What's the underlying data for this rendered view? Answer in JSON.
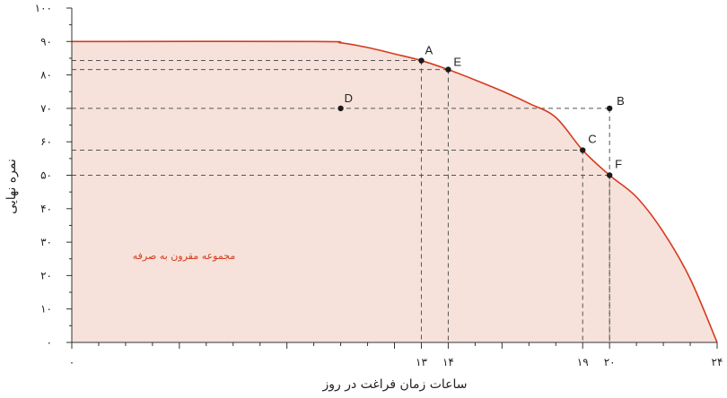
{
  "chart_data": {
    "type": "area",
    "xlabel": "ساعات زمان فراغت در روز",
    "ylabel": "نمره نهایی",
    "xlim": [
      0,
      24
    ],
    "ylim": [
      0,
      100
    ],
    "x_ticks": [
      {
        "value": 0,
        "label": "۰"
      },
      {
        "value": 13,
        "label": "۱۳"
      },
      {
        "value": 14,
        "label": "۱۴"
      },
      {
        "value": 19,
        "label": "۱۹"
      },
      {
        "value": 20,
        "label": "۲۰"
      },
      {
        "value": 24,
        "label": "۲۴"
      }
    ],
    "y_ticks": [
      {
        "value": 0,
        "label": "۰"
      },
      {
        "value": 10,
        "label": "۱۰"
      },
      {
        "value": 20,
        "label": "۲۰"
      },
      {
        "value": 30,
        "label": "۳۰"
      },
      {
        "value": 40,
        "label": "۴۰"
      },
      {
        "value": 50,
        "label": "۵۰"
      },
      {
        "value": 60,
        "label": "۶۰"
      },
      {
        "value": 70,
        "label": "۷۰"
      },
      {
        "value": 80,
        "label": "۸۰"
      },
      {
        "value": 90,
        "label": "۹۰"
      },
      {
        "value": 100,
        "label": "۱۰۰"
      }
    ],
    "frontier": {
      "x": [
        0,
        9,
        10,
        11,
        12,
        13,
        14,
        15,
        16,
        17,
        18,
        19,
        20,
        21,
        22,
        23,
        24
      ],
      "y": [
        90,
        90,
        89.6,
        88.2,
        86.3,
        84.3,
        81.6,
        78.5,
        75.2,
        71.5,
        67.3,
        57.5,
        50,
        43.5,
        33,
        19,
        0
      ]
    },
    "points": [
      {
        "label": "A",
        "x": 13,
        "y": 84.3
      },
      {
        "label": "E",
        "x": 14,
        "y": 81.6
      },
      {
        "label": "D",
        "x": 10,
        "y": 70
      },
      {
        "label": "B",
        "x": 20,
        "y": 70
      },
      {
        "label": "C",
        "x": 19,
        "y": 57.5
      },
      {
        "label": "F",
        "x": 20,
        "y": 50
      }
    ],
    "region_label": "مجموعه مقرون به صرفه",
    "grid": false,
    "colors": {
      "curve": "#d63a1e",
      "fill": "#f6e2da",
      "region_text": "#d63a1e",
      "guide": "#555555"
    }
  }
}
